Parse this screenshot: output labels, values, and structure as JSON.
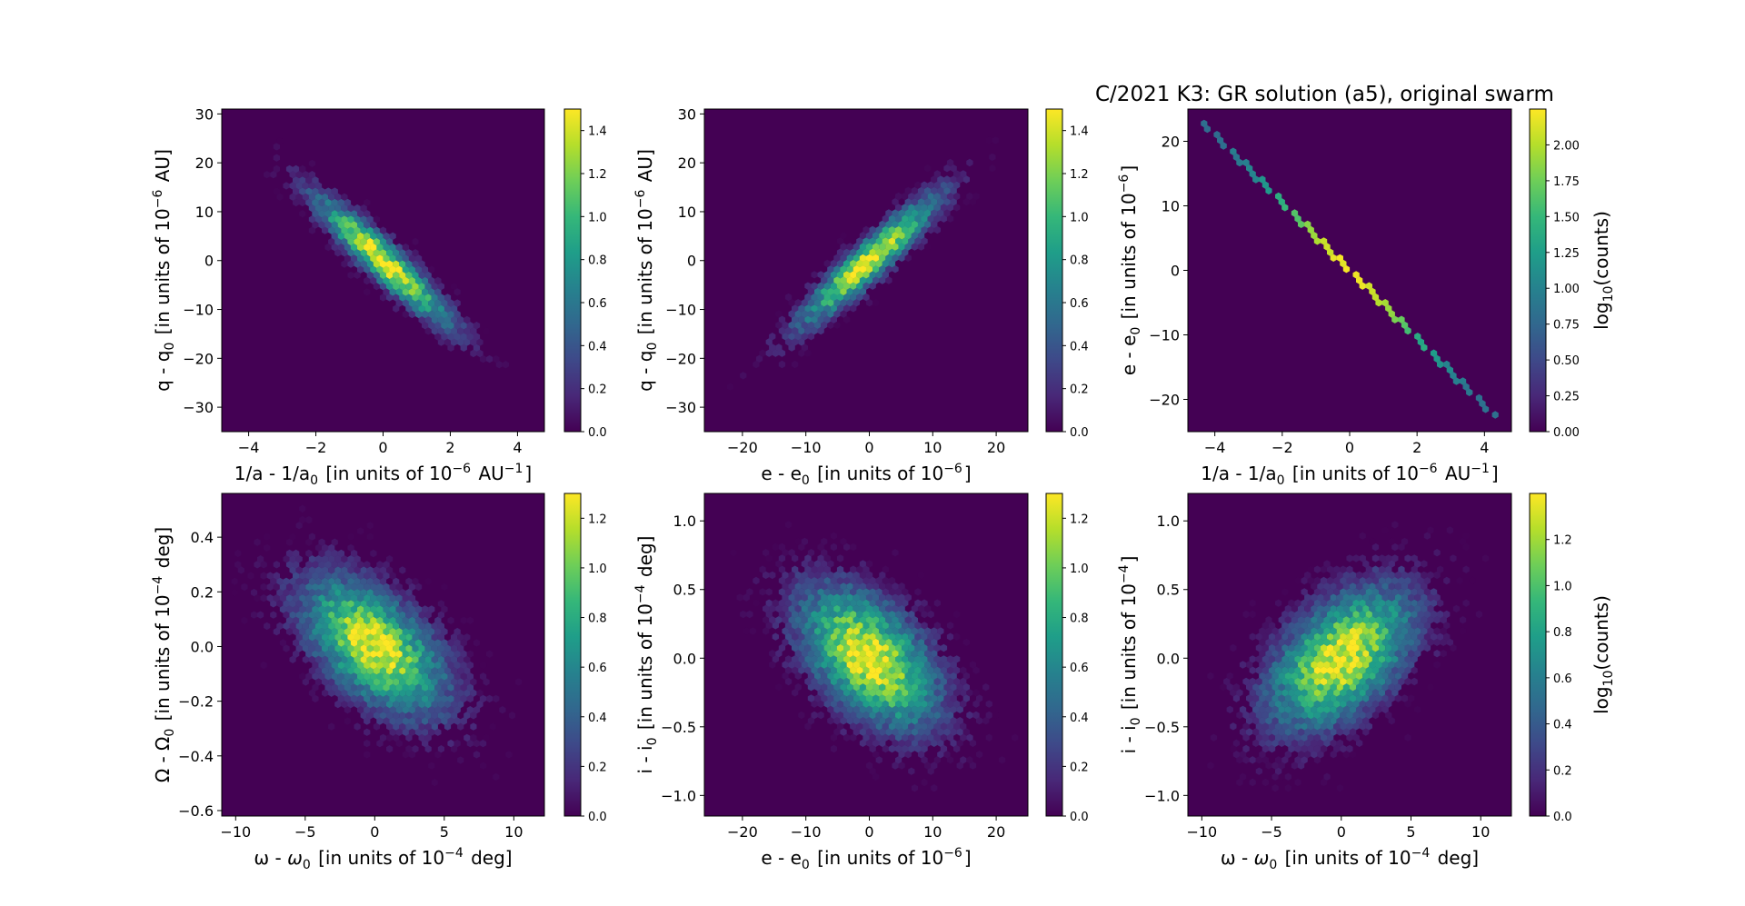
{
  "figure_title": "C/2021 K3: GR solution (a5), original swarm",
  "colormap": [
    "#440154",
    "#482878",
    "#3e4989",
    "#31688e",
    "#26828e",
    "#1f9e89",
    "#35b779",
    "#6ece58",
    "#b5de2b",
    "#fde725"
  ],
  "chart_data": [
    {
      "type": "heatmap",
      "subtype": "hexbin",
      "xlabel": "1/a - 1/a0 [in units of 10-6 AU-1]",
      "ylabel": "q - q0 [in units of 10-6 AU]",
      "xlim": [
        -4.8,
        4.8
      ],
      "ylim": [
        -35,
        31
      ],
      "xticks": [
        "−4",
        "−2",
        "0",
        "2",
        "4"
      ],
      "xtick_values": [
        -4,
        -2,
        0,
        2,
        4
      ],
      "yticks": [
        "−30",
        "−20",
        "−10",
        "0",
        "10",
        "20",
        "30"
      ],
      "ytick_values": [
        -30,
        -20,
        -10,
        0,
        10,
        20,
        30
      ],
      "colorbar": {
        "min": 0,
        "max": 1.5,
        "ticks": [
          "0.0",
          "0.2",
          "0.4",
          "0.6",
          "0.8",
          "1.0",
          "1.2",
          "1.4"
        ],
        "tick_values": [
          0,
          0.2,
          0.4,
          0.6,
          0.8,
          1.0,
          1.2,
          1.4
        ],
        "label": ""
      },
      "distribution": {
        "mean": [
          0,
          0
        ],
        "sigma": [
          1.3,
          8.5
        ],
        "correlation": -0.93,
        "peak_log10_counts": 1.5
      }
    },
    {
      "type": "heatmap",
      "subtype": "hexbin",
      "xlabel": "e - e0 [in units of 10-6]",
      "ylabel": "q - q0 [in units of 10-6 AU]",
      "xlim": [
        -26,
        25
      ],
      "ylim": [
        -35,
        31
      ],
      "xticks": [
        "−20",
        "−10",
        "0",
        "10",
        "20"
      ],
      "xtick_values": [
        -20,
        -10,
        0,
        10,
        20
      ],
      "yticks": [
        "−30",
        "−20",
        "−10",
        "0",
        "10",
        "20",
        "30"
      ],
      "ytick_values": [
        -30,
        -20,
        -10,
        0,
        10,
        20,
        30
      ],
      "colorbar": {
        "min": 0,
        "max": 1.5,
        "ticks": [
          "0.0",
          "0.2",
          "0.4",
          "0.6",
          "0.8",
          "1.0",
          "1.2",
          "1.4"
        ],
        "tick_values": [
          0,
          0.2,
          0.4,
          0.6,
          0.8,
          1.0,
          1.2,
          1.4
        ],
        "label": ""
      },
      "distribution": {
        "mean": [
          0,
          0
        ],
        "sigma": [
          7.0,
          8.5
        ],
        "correlation": 0.93,
        "peak_log10_counts": 1.5
      }
    },
    {
      "type": "heatmap",
      "subtype": "hexbin",
      "xlabel": "1/a - 1/a0 [in units of 10-6 AU-1]",
      "ylabel": "e - e0 [in units of 10-6]",
      "xlim": [
        -4.8,
        4.8
      ],
      "ylim": [
        -25,
        25
      ],
      "xticks": [
        "−4",
        "−2",
        "0",
        "2",
        "4"
      ],
      "xtick_values": [
        -4,
        -2,
        0,
        2,
        4
      ],
      "yticks": [
        "−20",
        "−10",
        "0",
        "10",
        "20"
      ],
      "ytick_values": [
        -20,
        -10,
        0,
        10,
        20
      ],
      "colorbar": {
        "min": 0,
        "max": 2.25,
        "ticks": [
          "0.00",
          "0.25",
          "0.50",
          "0.75",
          "1.00",
          "1.25",
          "1.50",
          "1.75",
          "2.00"
        ],
        "tick_values": [
          0,
          0.25,
          0.5,
          0.75,
          1.0,
          1.25,
          1.5,
          1.75,
          2.0
        ],
        "label": "log10(counts)"
      },
      "distribution": {
        "line": {
          "slope": -5.25,
          "x_range": [
            -4.4,
            4.4
          ]
        },
        "peak_log10_counts": 2.2
      }
    },
    {
      "type": "heatmap",
      "subtype": "hexbin",
      "xlabel": "ω - ω0 [in units of 10-4 deg]",
      "ylabel": "Ω - Ω0 [in units of 10-4 deg]",
      "xlim": [
        -11,
        12.2
      ],
      "ylim": [
        -0.62,
        0.56
      ],
      "xticks": [
        "−10",
        "−5",
        "0",
        "5",
        "10"
      ],
      "xtick_values": [
        -10,
        -5,
        0,
        5,
        10
      ],
      "yticks": [
        "−0.6",
        "−0.4",
        "−0.2",
        "0.0",
        "0.2",
        "0.4"
      ],
      "ytick_values": [
        -0.6,
        -0.4,
        -0.2,
        0,
        0.2,
        0.4
      ],
      "colorbar": {
        "min": 0,
        "max": 1.3,
        "ticks": [
          "0.0",
          "0.2",
          "0.4",
          "0.6",
          "0.8",
          "1.0",
          "1.2"
        ],
        "tick_values": [
          0,
          0.2,
          0.4,
          0.6,
          0.8,
          1.0,
          1.2
        ],
        "label": ""
      },
      "distribution": {
        "mean": [
          0,
          0
        ],
        "sigma": [
          3.3,
          0.16
        ],
        "correlation": -0.55,
        "peak_log10_counts": 1.28
      }
    },
    {
      "type": "heatmap",
      "subtype": "hexbin",
      "xlabel": "e - e0 [in units of 10-6]",
      "ylabel": "i - i0 [in units of 10-4 deg]",
      "xlim": [
        -26,
        25
      ],
      "ylim": [
        -1.15,
        1.2
      ],
      "xticks": [
        "−20",
        "−10",
        "0",
        "10",
        "20"
      ],
      "xtick_values": [
        -20,
        -10,
        0,
        10,
        20
      ],
      "yticks": [
        "−1.0",
        "−0.5",
        "0.0",
        "0.5",
        "1.0"
      ],
      "ytick_values": [
        -1,
        -0.5,
        0,
        0.5,
        1
      ],
      "colorbar": {
        "min": 0,
        "max": 1.3,
        "ticks": [
          "0.0",
          "0.2",
          "0.4",
          "0.6",
          "0.8",
          "1.0",
          "1.2"
        ],
        "tick_values": [
          0,
          0.2,
          0.4,
          0.6,
          0.8,
          1.0,
          1.2
        ],
        "label": ""
      },
      "distribution": {
        "mean": [
          0,
          0
        ],
        "sigma": [
          7.0,
          0.33
        ],
        "correlation": -0.5,
        "peak_log10_counts": 1.3
      }
    },
    {
      "type": "heatmap",
      "subtype": "hexbin",
      "xlabel": "ω - ω0 [in units of 10-4 deg]",
      "ylabel": "i - i0 [in units of 10-4]",
      "xlim": [
        -11,
        12.2
      ],
      "ylim": [
        -1.15,
        1.2
      ],
      "xticks": [
        "−10",
        "−5",
        "0",
        "5",
        "10"
      ],
      "xtick_values": [
        -10,
        -5,
        0,
        5,
        10
      ],
      "yticks": [
        "−1.0",
        "−0.5",
        "0.0",
        "0.5",
        "1.0"
      ],
      "ytick_values": [
        -1,
        -0.5,
        0,
        0.5,
        1
      ],
      "colorbar": {
        "min": 0,
        "max": 1.4,
        "ticks": [
          "0.0",
          "0.2",
          "0.4",
          "0.6",
          "0.8",
          "1.0",
          "1.2"
        ],
        "tick_values": [
          0,
          0.2,
          0.4,
          0.6,
          0.8,
          1.0,
          1.2
        ],
        "label": "log10(counts)"
      },
      "distribution": {
        "mean": [
          0,
          0
        ],
        "sigma": [
          3.3,
          0.33
        ],
        "correlation": 0.5,
        "peak_log10_counts": 1.38
      }
    }
  ]
}
